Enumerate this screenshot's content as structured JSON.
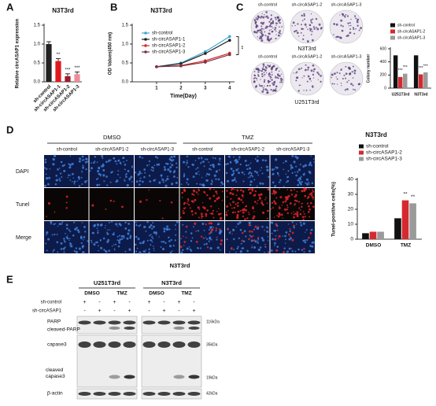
{
  "chart_data": [
    {
      "type": "bar",
      "panel_label": "A",
      "title": "N3T3rd",
      "ylabel": "Relative circASAP1 expression",
      "categories": [
        "sh-control",
        "sh-circASAP1-1",
        "sh-circASAP1-2",
        "sh-circASAP1-3"
      ],
      "values": [
        1.0,
        0.55,
        0.15,
        0.2
      ],
      "colors": [
        "#222222",
        "#e0191e",
        "#a01a2a",
        "#f08a9a"
      ],
      "annotations": [
        null,
        "**",
        "***",
        "***"
      ],
      "ylim": [
        0,
        1.5
      ],
      "yticks": [
        {
          "value": 0,
          "label": "0.0"
        },
        {
          "value": 0.5,
          "label": "0.5"
        },
        {
          "value": 1,
          "label": "1.0"
        },
        {
          "value": 1.5,
          "label": "1.5"
        }
      ]
    },
    {
      "type": "line",
      "panel_label": "B",
      "title": "N3T3rd",
      "ylabel": "OD Values(450 nm)",
      "xlabel": "Time(Day)",
      "x": [
        1,
        2,
        3,
        4
      ],
      "xlim": [
        0,
        4.2
      ],
      "xticks": [
        1,
        2,
        3,
        4
      ],
      "ylim": [
        0,
        1.5
      ],
      "yticks": [
        {
          "value": 0,
          "label": "0.0"
        },
        {
          "value": 0.5,
          "label": "0.5"
        },
        {
          "value": 1,
          "label": "1.0"
        },
        {
          "value": 1.5,
          "label": "1.5"
        }
      ],
      "annotation": "**",
      "series": [
        {
          "name": "sh-control",
          "color": "#3fa9d6",
          "values": [
            0.4,
            0.5,
            0.8,
            1.2
          ]
        },
        {
          "name": "sh-circASAP1-1",
          "color": "#222222",
          "values": [
            0.4,
            0.48,
            0.75,
            1.1
          ]
        },
        {
          "name": "sh-circASAP1-2",
          "color": "#d42a2f",
          "values": [
            0.4,
            0.43,
            0.56,
            0.76
          ]
        },
        {
          "name": "sh-circASAP1-3",
          "color": "#7a3040",
          "values": [
            0.4,
            0.42,
            0.52,
            0.72
          ]
        }
      ]
    },
    {
      "type": "bar",
      "panel_label": "C",
      "ylabel": "Colony number",
      "categories": [
        "U251T3rd",
        "N3T3rd"
      ],
      "ylim": [
        0,
        600
      ],
      "yticks": [
        0,
        200,
        400,
        600
      ],
      "series": [
        {
          "name": "sh-control",
          "color": "#111111",
          "values": [
            500,
            500
          ]
        },
        {
          "name": "sh-circASAP1-2",
          "color": "#d42a2f",
          "values": [
            170,
            210
          ],
          "annotations": [
            "***",
            "***"
          ]
        },
        {
          "name": "sh-circASAP1-3",
          "color": "#9a9a9a",
          "values": [
            220,
            240
          ],
          "annotations": [
            "***",
            "***"
          ]
        }
      ]
    },
    {
      "type": "bar",
      "panel_label": "D",
      "title": "N3T3rd",
      "ylabel": "Tunel-positive cells(%)",
      "categories": [
        "DMSO",
        "TMZ"
      ],
      "ylim": [
        0,
        40
      ],
      "yticks": [
        0,
        10,
        20,
        30,
        40
      ],
      "series": [
        {
          "name": "sh-control",
          "color": "#111111",
          "values": [
            4,
            14
          ]
        },
        {
          "name": "sh-circASAP1-2",
          "color": "#d42a2f",
          "values": [
            5,
            26
          ],
          "annotations": [
            null,
            "**"
          ]
        },
        {
          "name": "sh-circASAP1-3",
          "color": "#9a9a9a",
          "values": [
            5,
            24
          ],
          "annotations": [
            null,
            "**"
          ]
        }
      ]
    }
  ],
  "colony": {
    "column_labels": [
      "sh-control",
      "sh-circASAP1-2",
      "sh-circASAP1-3"
    ],
    "row_labels": [
      "N3T3rd",
      "U251T3rd"
    ]
  },
  "tunel": {
    "groups": [
      "DMSO",
      "TMZ"
    ],
    "columns": [
      "sh-control",
      "sh-circASAP1-2",
      "sh-circASAP1-3"
    ],
    "rows": [
      "DAPI",
      "Tunel",
      "Merge"
    ],
    "caption": "N3T3rd"
  },
  "western_blot": {
    "panel_label": "E",
    "cell_lines": [
      "U251T3rd",
      "N3T3rd"
    ],
    "treatments": [
      "DMSO",
      "TMZ"
    ],
    "conditions": [
      {
        "name": "sh-control",
        "signs": [
          "+",
          "-",
          "+",
          "-"
        ]
      },
      {
        "name": "sh-circASAP1",
        "signs": [
          "-",
          "+",
          "-",
          "+"
        ]
      }
    ],
    "bands": [
      "PARP",
      "cleaved-PARP",
      "capase3",
      "cleaved capase3",
      "β-actin"
    ],
    "markers": [
      "116kDa",
      "35kDa",
      "19kDa",
      "42kDa"
    ]
  }
}
